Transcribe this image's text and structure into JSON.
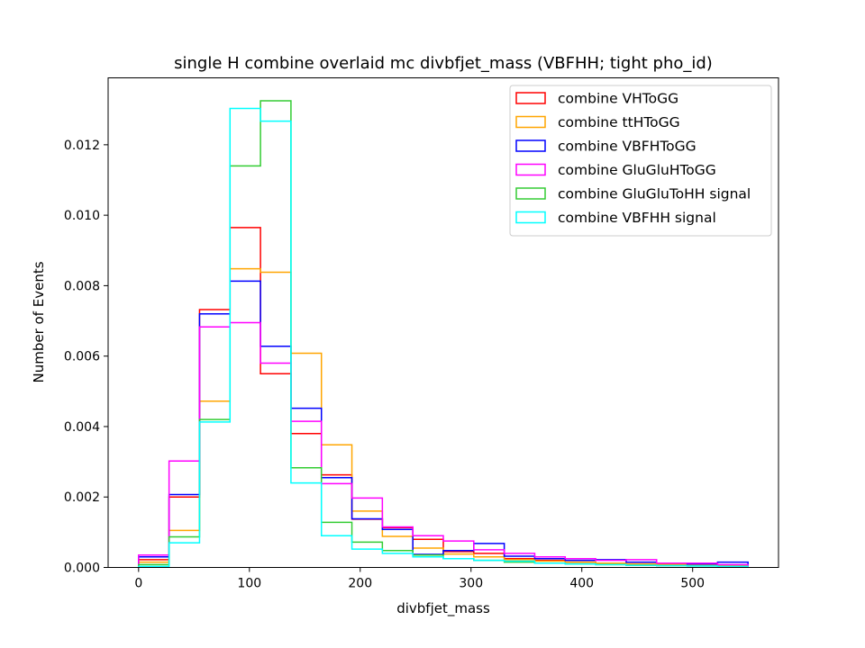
{
  "chart_data": {
    "type": "histogram-step",
    "title": "single H combine overlaid mc divbfjet_mass (VBFHH; tight pho_id)",
    "xlabel": "divbfjet_mass",
    "ylabel": "Number of Events",
    "xlim": [
      -27.5,
      577.5
    ],
    "ylim": [
      0,
      0.0139
    ],
    "xticks": [
      0,
      100,
      200,
      300,
      400,
      500
    ],
    "yticks": [
      0.0,
      0.002,
      0.004,
      0.006,
      0.008,
      0.01,
      0.012
    ],
    "ytick_labels": [
      "0.000",
      "0.002",
      "0.004",
      "0.006",
      "0.008",
      "0.010",
      "0.012"
    ],
    "bin_edges": [
      0,
      27.5,
      55,
      82.5,
      110,
      137.5,
      165,
      192.5,
      220,
      247.5,
      275,
      302.5,
      330,
      357.5,
      385,
      412.5,
      440,
      467.5,
      495,
      522.5,
      550
    ],
    "grid": false,
    "legend_position": "upper right",
    "series": [
      {
        "name": "combine VHToGG",
        "color": "#ff0000",
        "values": [
          0.00022,
          0.002,
          0.00732,
          0.00965,
          0.0055,
          0.0038,
          0.00263,
          0.00137,
          0.00113,
          0.0008,
          0.00045,
          0.0004,
          0.00025,
          0.0002,
          0.00015,
          0.00012,
          0.0001,
          8e-05,
          6e-05,
          5e-05
        ]
      },
      {
        "name": "combine ttHToGG",
        "color": "#ffa500",
        "values": [
          0.00015,
          0.00105,
          0.00472,
          0.00848,
          0.00838,
          0.00608,
          0.00348,
          0.0016,
          0.00088,
          0.00055,
          0.00038,
          0.0003,
          0.00022,
          0.00018,
          0.00015,
          0.00012,
          0.0001,
          8e-05,
          6e-05,
          5e-05
        ]
      },
      {
        "name": "combine VBFHToGG",
        "color": "#0000ff",
        "values": [
          0.0003,
          0.00207,
          0.0072,
          0.00813,
          0.00628,
          0.00452,
          0.00255,
          0.00138,
          0.00108,
          0.00037,
          0.00048,
          0.00068,
          0.00032,
          0.00025,
          0.0002,
          0.00022,
          0.00015,
          0.00012,
          0.0001,
          0.00015
        ]
      },
      {
        "name": "combine GluGluHToGG",
        "color": "#ff00ff",
        "values": [
          0.00035,
          0.00302,
          0.00683,
          0.00695,
          0.0058,
          0.00415,
          0.00238,
          0.00197,
          0.00115,
          0.0009,
          0.00075,
          0.0005,
          0.0004,
          0.0003,
          0.00025,
          0.0002,
          0.00022,
          0.00012,
          0.00012,
          8e-05
        ]
      },
      {
        "name": "combine GluGluToHH signal",
        "color": "#33cc33",
        "values": [
          8e-05,
          0.00087,
          0.0042,
          0.0114,
          0.01325,
          0.00283,
          0.00128,
          0.00072,
          0.00048,
          0.00035,
          0.00025,
          0.0002,
          0.00015,
          0.00012,
          0.0001,
          8e-05,
          6e-05,
          5e-05,
          4e-05,
          3e-05
        ]
      },
      {
        "name": "combine VBFHH signal",
        "color": "#00ffff",
        "values": [
          3e-05,
          0.0007,
          0.00413,
          0.01303,
          0.01267,
          0.0024,
          0.0009,
          0.00052,
          0.0004,
          0.0003,
          0.00025,
          0.0002,
          0.00018,
          0.00012,
          0.0001,
          8e-05,
          6e-05,
          5e-05,
          4e-05,
          3e-05
        ]
      }
    ]
  }
}
